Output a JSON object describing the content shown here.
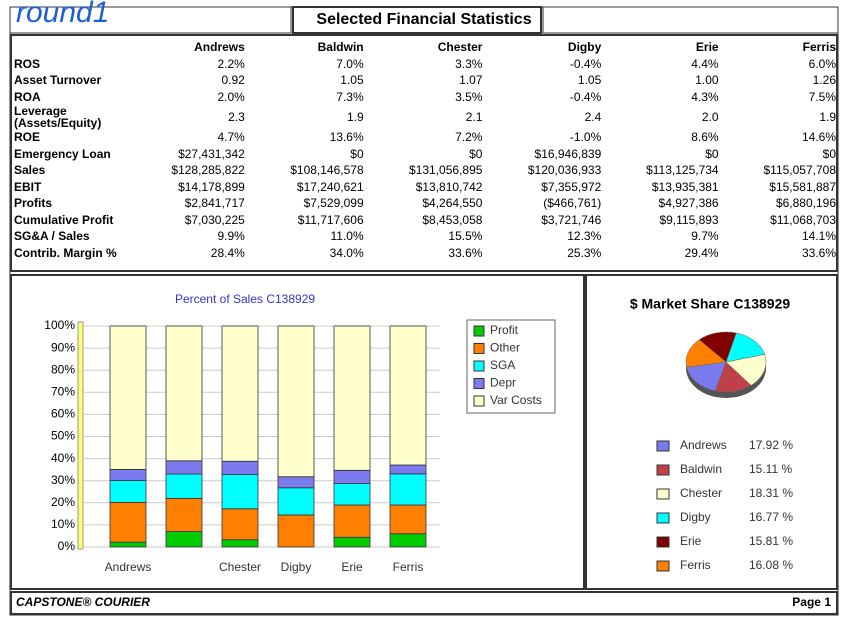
{
  "header": {
    "annotation": "round1",
    "title": "Selected Financial Statistics"
  },
  "table": {
    "columns": [
      "Andrews",
      "Baldwin",
      "Chester",
      "Digby",
      "Erie",
      "Ferris"
    ],
    "rows": [
      [
        "ROS",
        "2.2%",
        "7.0%",
        "3.3%",
        "-0.4%",
        "4.4%",
        "6.0%"
      ],
      [
        "Asset Turnover",
        "0.92",
        "1.05",
        "1.07",
        "1.05",
        "1.00",
        "1.26"
      ],
      [
        "ROA",
        "2.0%",
        "7.3%",
        "3.5%",
        "-0.4%",
        "4.3%",
        "7.5%"
      ],
      [
        "Leverage (Assets/Equity)",
        "2.3",
        "1.9",
        "2.1",
        "2.4",
        "2.0",
        "1.9"
      ],
      [
        "ROE",
        "4.7%",
        "13.6%",
        "7.2%",
        "-1.0%",
        "8.6%",
        "14.6%"
      ],
      [
        "Emergency Loan",
        "$27,431,342",
        "$0",
        "$0",
        "$16,946,839",
        "$0",
        "$0"
      ],
      [
        "Sales",
        "$128,285,822",
        "$108,146,578",
        "$131,056,895",
        "$120,036,933",
        "$113,125,734",
        "$115,057,708"
      ],
      [
        "EBIT",
        "$14,178,899",
        "$17,240,621",
        "$13,810,742",
        "$7,355,972",
        "$13,935,381",
        "$15,581,887"
      ],
      [
        "Profits",
        "$2,841,717",
        "$7,529,099",
        "$4,264,550",
        "($466,761)",
        "$4,927,386",
        "$6,880,196"
      ],
      [
        "Cumulative Profit",
        "$7,030,225",
        "$11,717,606",
        "$8,453,058",
        "$3,721,746",
        "$9,115,893",
        "$11,068,703"
      ],
      [
        "SG&A / Sales",
        "9.9%",
        "11.0%",
        "15.5%",
        "12.3%",
        "9.7%",
        "14.1%"
      ],
      [
        "Contrib. Margin %",
        "28.4%",
        "34.0%",
        "33.6%",
        "25.3%",
        "29.4%",
        "33.6%"
      ]
    ]
  },
  "chart_data": [
    {
      "type": "bar",
      "stacked": true,
      "title": "Percent of Sales C138929",
      "categories": [
        "Andrews",
        null,
        "Chester",
        "Digby",
        "Erie",
        "Ferris"
      ],
      "series": [
        {
          "name": "Profit",
          "color": "#00cc00",
          "values": [
            2.2,
            7.0,
            3.3,
            0,
            4.4,
            6.0
          ]
        },
        {
          "name": "Other",
          "color": "#ff8000",
          "values": [
            18,
            15,
            14,
            14.5,
            14.6,
            13
          ]
        },
        {
          "name": "SGA",
          "color": "#00ffff",
          "values": [
            9.9,
            11.0,
            15.5,
            12.3,
            9.7,
            14.1
          ]
        },
        {
          "name": "Depr",
          "color": "#7b7bef",
          "values": [
            5,
            6,
            6,
            5,
            6,
            4
          ]
        },
        {
          "name": "Var Costs",
          "color": "#ffffcc",
          "values": [
            64.9,
            61,
            61.2,
            68.2,
            65.3,
            62.9
          ]
        }
      ],
      "ylim": [
        0,
        100
      ],
      "yticks": [
        {
          "value": 0,
          "label": "0%"
        },
        {
          "value": 10,
          "label": "10%"
        },
        {
          "value": 20,
          "label": "20%"
        },
        {
          "value": 30,
          "label": "30%"
        },
        {
          "value": 40,
          "label": "40%"
        },
        {
          "value": 50,
          "label": "50%"
        },
        {
          "value": 60,
          "label": "60%"
        },
        {
          "value": 70,
          "label": "70%"
        },
        {
          "value": 80,
          "label": "80%"
        },
        {
          "value": 90,
          "label": "90%"
        },
        {
          "value": 100,
          "label": "100%"
        }
      ],
      "grid": true,
      "legend": "right"
    },
    {
      "type": "pie",
      "title": "$ Market Share C138929",
      "categories": [
        "Andrews",
        "Baldwin",
        "Chester",
        "Digby",
        "Erie",
        "Ferris"
      ],
      "values": [
        17.92,
        15.11,
        18.31,
        16.77,
        15.81,
        16.08
      ],
      "value_labels": [
        "17.92 %",
        "15.11 %",
        "18.31 %",
        "16.77 %",
        "15.81 %",
        "16.08 %"
      ],
      "colors": [
        "#7b7bef",
        "#c0404a",
        "#ffffcc",
        "#00ffff",
        "#800000",
        "#ff8000"
      ],
      "legend": "bottom-right"
    }
  ],
  "footer": {
    "left": "CAPSTONE® COURIER",
    "right": "Page 1"
  }
}
